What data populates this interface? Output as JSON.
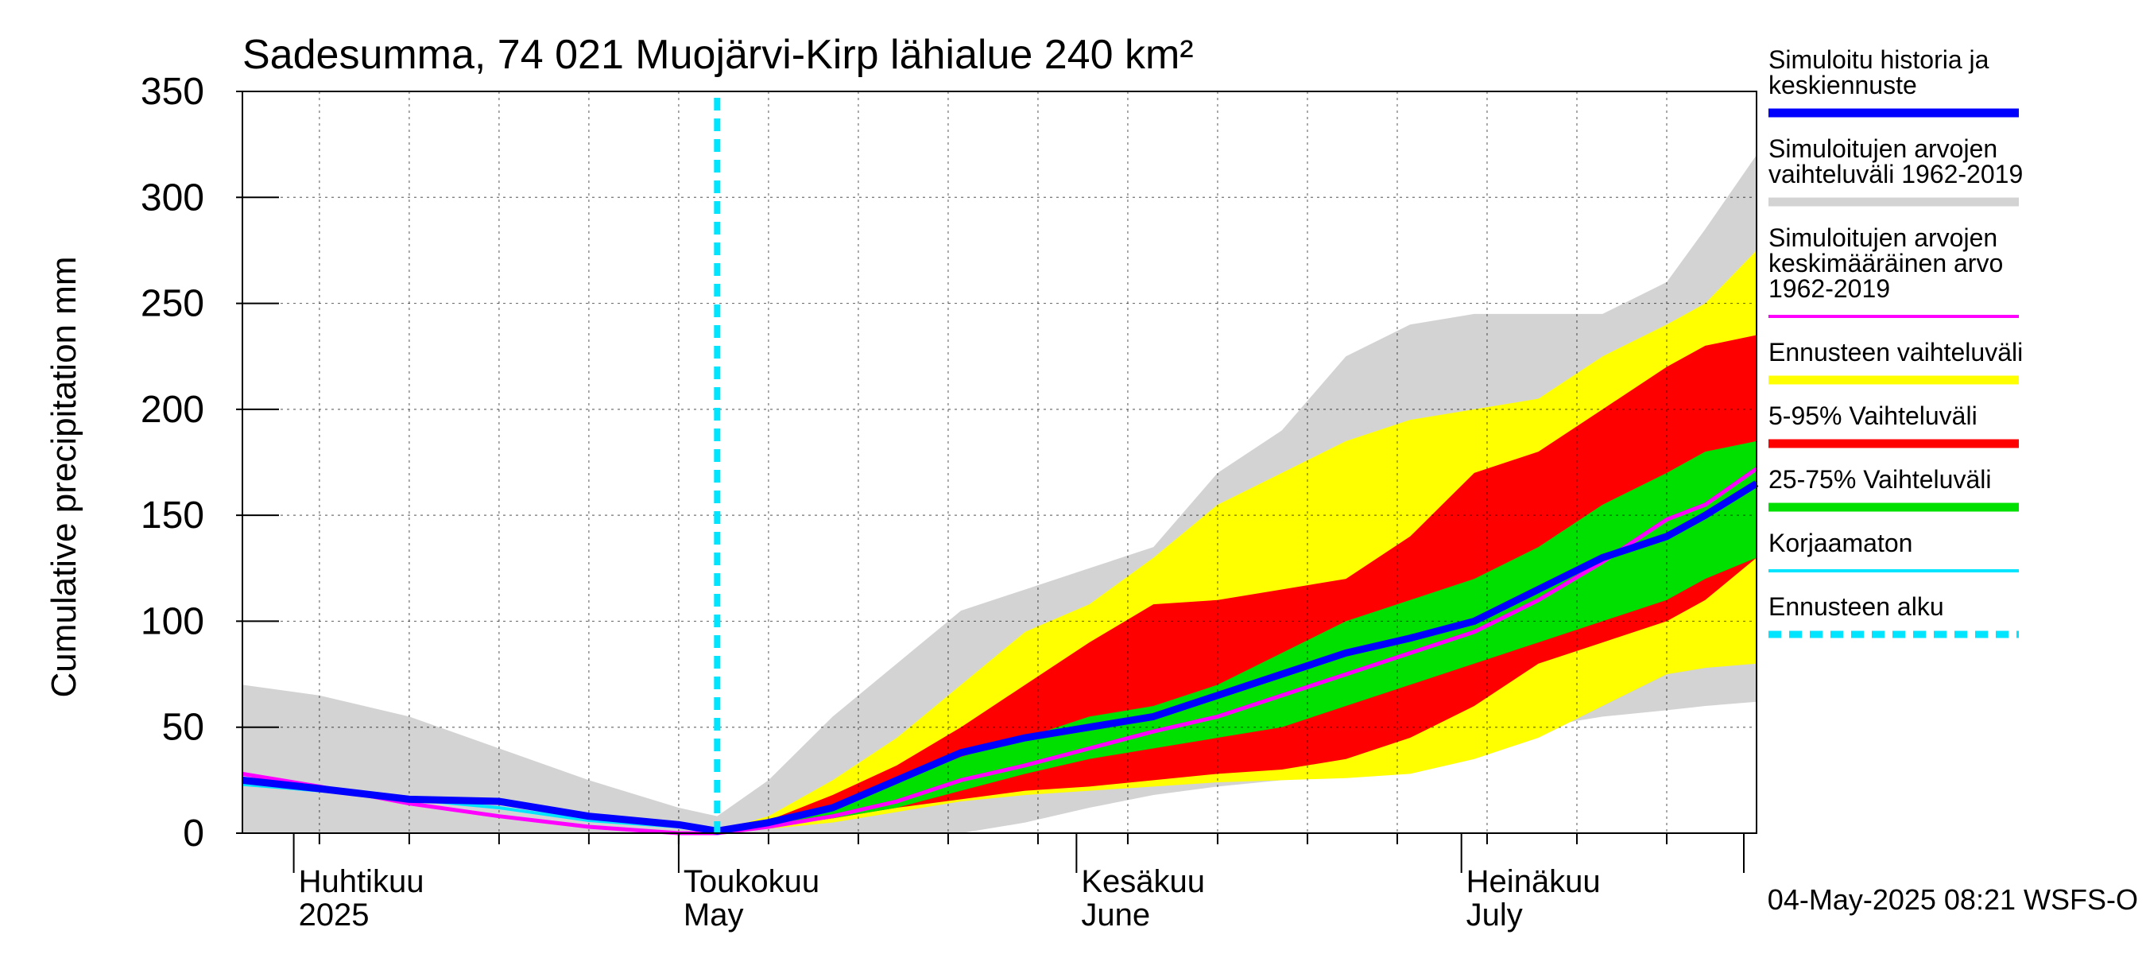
{
  "chart_data": {
    "type": "area",
    "title": "Sadesumma, 74 021 Muojärvi-Kirp lähialue 240 km²",
    "ylabel": "Cumulative precipitation   mm",
    "xlabel": "",
    "ylim": [
      0,
      350
    ],
    "yticks": [
      "0",
      "50",
      "100",
      "150",
      "200",
      "250",
      "300",
      "350"
    ],
    "xlim": [
      "2025-03-28",
      "2025-07-24"
    ],
    "month_labels": [
      {
        "date": "2025-04-01",
        "fi": "Huhtikuu",
        "en": "2025"
      },
      {
        "date": "2025-05-01",
        "fi": "Toukokuu",
        "en": "May"
      },
      {
        "date": "2025-06-01",
        "fi": "Kesäkuu",
        "en": "June"
      },
      {
        "date": "2025-07-01",
        "fi": "Heinäkuu",
        "en": "July"
      }
    ],
    "forecast_start": "2025-05-04",
    "timestamp": "04-May-2025 08:21 WSFS-O",
    "grid": true,
    "legend_position": "right",
    "series": [
      {
        "name": "Simuloitujen arvojen vaihteluväli 1962-2019",
        "kind": "band",
        "color": "#d3d3d3",
        "x": [
          "2025-03-28",
          "2025-04-03",
          "2025-04-10",
          "2025-04-17",
          "2025-04-24",
          "2025-05-01",
          "2025-05-04",
          "2025-05-08",
          "2025-05-13",
          "2025-05-18",
          "2025-05-23",
          "2025-05-28",
          "2025-06-02",
          "2025-06-07",
          "2025-06-12",
          "2025-06-17",
          "2025-06-22",
          "2025-06-27",
          "2025-07-02",
          "2025-07-07",
          "2025-07-12",
          "2025-07-17",
          "2025-07-20",
          "2025-07-24"
        ],
        "upper": [
          70,
          65,
          55,
          40,
          25,
          12,
          8,
          25,
          55,
          80,
          105,
          115,
          125,
          135,
          170,
          190,
          225,
          240,
          245,
          245,
          245,
          260,
          285,
          320
        ],
        "lower": [
          0,
          0,
          0,
          0,
          0,
          0,
          0,
          0,
          0,
          0,
          0,
          5,
          12,
          18,
          22,
          25,
          28,
          35,
          40,
          50,
          55,
          58,
          60,
          62
        ]
      },
      {
        "name": "Ennusteen vaihteluväli",
        "kind": "band",
        "color": "#ffff00",
        "x": [
          "2025-05-04",
          "2025-05-08",
          "2025-05-13",
          "2025-05-18",
          "2025-05-23",
          "2025-05-28",
          "2025-06-02",
          "2025-06-07",
          "2025-06-12",
          "2025-06-17",
          "2025-06-22",
          "2025-06-27",
          "2025-07-02",
          "2025-07-07",
          "2025-07-12",
          "2025-07-17",
          "2025-07-20",
          "2025-07-24"
        ],
        "upper": [
          1,
          8,
          25,
          45,
          70,
          95,
          108,
          130,
          155,
          170,
          185,
          195,
          200,
          205,
          225,
          240,
          250,
          275
        ],
        "lower": [
          1,
          2,
          5,
          10,
          15,
          18,
          20,
          22,
          24,
          25,
          26,
          28,
          35,
          45,
          60,
          75,
          78,
          80
        ]
      },
      {
        "name": "5-95% Vaihteluväli",
        "kind": "band",
        "color": "#ff0000",
        "x": [
          "2025-05-04",
          "2025-05-08",
          "2025-05-13",
          "2025-05-18",
          "2025-05-23",
          "2025-05-28",
          "2025-06-02",
          "2025-06-07",
          "2025-06-12",
          "2025-06-17",
          "2025-06-22",
          "2025-06-27",
          "2025-07-02",
          "2025-07-07",
          "2025-07-12",
          "2025-07-17",
          "2025-07-20",
          "2025-07-24"
        ],
        "upper": [
          1,
          6,
          18,
          32,
          50,
          70,
          90,
          108,
          110,
          115,
          120,
          140,
          170,
          180,
          200,
          220,
          230,
          235
        ],
        "lower": [
          1,
          3,
          7,
          12,
          16,
          20,
          22,
          25,
          28,
          30,
          35,
          45,
          60,
          80,
          90,
          100,
          110,
          130
        ]
      },
      {
        "name": "25-75% Vaihteluväli",
        "kind": "band",
        "color": "#00e000",
        "x": [
          "2025-05-04",
          "2025-05-08",
          "2025-05-13",
          "2025-05-18",
          "2025-05-23",
          "2025-05-28",
          "2025-06-02",
          "2025-06-07",
          "2025-06-12",
          "2025-06-17",
          "2025-06-22",
          "2025-06-27",
          "2025-07-02",
          "2025-07-07",
          "2025-07-12",
          "2025-07-17",
          "2025-07-20",
          "2025-07-24"
        ],
        "upper": [
          1,
          4,
          12,
          24,
          36,
          45,
          55,
          60,
          70,
          85,
          100,
          110,
          120,
          135,
          155,
          170,
          180,
          185
        ],
        "lower": [
          1,
          3,
          7,
          12,
          20,
          28,
          35,
          40,
          45,
          50,
          60,
          70,
          80,
          90,
          100,
          110,
          120,
          130
        ]
      },
      {
        "name": "Simuloitujen arvojen keskimääräinen arvo 1962-2019",
        "kind": "line",
        "color": "#ff00ff",
        "x": [
          "2025-03-28",
          "2025-04-03",
          "2025-04-10",
          "2025-04-17",
          "2025-04-24",
          "2025-05-01",
          "2025-05-04",
          "2025-05-08",
          "2025-05-13",
          "2025-05-18",
          "2025-05-23",
          "2025-05-28",
          "2025-06-02",
          "2025-06-07",
          "2025-06-12",
          "2025-06-17",
          "2025-06-22",
          "2025-06-27",
          "2025-07-02",
          "2025-07-07",
          "2025-07-12",
          "2025-07-17",
          "2025-07-20",
          "2025-07-24"
        ],
        "values": [
          28,
          22,
          14,
          8,
          3,
          0,
          0,
          3,
          8,
          15,
          25,
          32,
          40,
          48,
          55,
          65,
          75,
          85,
          95,
          110,
          128,
          148,
          155,
          172
        ]
      },
      {
        "name": "Korjaamaton",
        "kind": "line",
        "color": "#00e5ff",
        "x": [
          "2025-03-28",
          "2025-04-03",
          "2025-04-10",
          "2025-04-17",
          "2025-04-24",
          "2025-05-01",
          "2025-05-04"
        ],
        "values": [
          23,
          20,
          16,
          12,
          6,
          3,
          1
        ]
      },
      {
        "name": "Simuloitu historia ja keskiennuste",
        "kind": "line",
        "color": "#0000ff",
        "x": [
          "2025-03-28",
          "2025-04-03",
          "2025-04-10",
          "2025-04-17",
          "2025-04-24",
          "2025-05-01",
          "2025-05-04",
          "2025-05-08",
          "2025-05-13",
          "2025-05-18",
          "2025-05-23",
          "2025-05-28",
          "2025-06-02",
          "2025-06-07",
          "2025-06-12",
          "2025-06-17",
          "2025-06-22",
          "2025-06-27",
          "2025-07-02",
          "2025-07-07",
          "2025-07-12",
          "2025-07-17",
          "2025-07-20",
          "2025-07-24"
        ],
        "values": [
          25,
          21,
          16,
          15,
          8,
          4,
          1,
          5,
          12,
          25,
          38,
          45,
          50,
          55,
          65,
          75,
          85,
          92,
          100,
          115,
          130,
          140,
          150,
          165
        ]
      }
    ]
  },
  "legend": [
    {
      "lines": [
        "Simuloitu historia ja",
        "keskiennuste"
      ],
      "color": "#0000ff",
      "style": "solid-thick"
    },
    {
      "lines": [
        "Simuloitujen arvojen",
        "vaihteluväli 1962-2019"
      ],
      "color": "#d3d3d3",
      "style": "solid-thick"
    },
    {
      "lines": [
        "Simuloitujen arvojen",
        "keskimääräinen arvo",
        "   1962-2019"
      ],
      "color": "#ff00ff",
      "style": "solid"
    },
    {
      "lines": [
        "Ennusteen vaihteluväli"
      ],
      "color": "#ffff00",
      "style": "solid-thick"
    },
    {
      "lines": [
        "5-95% Vaihteluväli"
      ],
      "color": "#ff0000",
      "style": "solid-thick"
    },
    {
      "lines": [
        "25-75% Vaihteluväli"
      ],
      "color": "#00e000",
      "style": "solid-thick"
    },
    {
      "lines": [
        "Korjaamaton"
      ],
      "color": "#00e5ff",
      "style": "solid"
    },
    {
      "lines": [
        "Ennusteen alku"
      ],
      "color": "#00e5ff",
      "style": "dashed"
    }
  ]
}
